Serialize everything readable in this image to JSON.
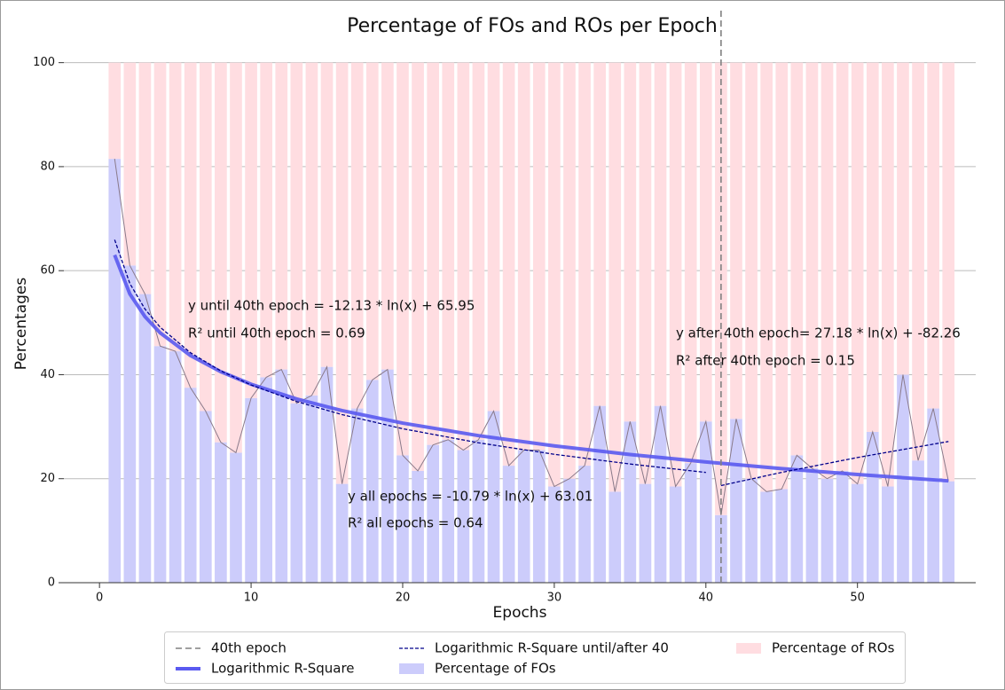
{
  "chart_data": {
    "type": "bar",
    "title": "Percentage of FOs and ROs per Epoch",
    "x_label": "Epochs",
    "y_label": "Percentages",
    "x": [
      1,
      2,
      3,
      4,
      5,
      6,
      7,
      8,
      9,
      10,
      11,
      12,
      13,
      14,
      15,
      16,
      17,
      18,
      19,
      20,
      21,
      22,
      23,
      24,
      25,
      26,
      27,
      28,
      29,
      30,
      31,
      32,
      33,
      34,
      35,
      36,
      37,
      38,
      39,
      40,
      41,
      42,
      43,
      44,
      45,
      46,
      47,
      48,
      49,
      50,
      51,
      52,
      53,
      54,
      55,
      56
    ],
    "xlim": [
      -2.35,
      57.8
    ],
    "ylim": [
      0,
      110
    ],
    "xticks": [
      0,
      10,
      20,
      30,
      40,
      50
    ],
    "yticks": [
      0,
      20,
      40,
      60,
      80,
      100
    ],
    "grid": true,
    "legend": "lower center outside",
    "series": [
      {
        "name": "Percentage of FOs",
        "color": "#ccccfb",
        "values": [
          81.5,
          61,
          55.5,
          45.5,
          44.5,
          37.5,
          33,
          27,
          25,
          35.5,
          39.5,
          41,
          34.5,
          36,
          41.5,
          19,
          33.5,
          39,
          41,
          24.5,
          21.5,
          26.5,
          27.5,
          25.5,
          27.5,
          33,
          22.5,
          25.5,
          25.5,
          18.5,
          20,
          22.5,
          34,
          17.5,
          31,
          19,
          34,
          18.5,
          23,
          31,
          13,
          31.5,
          20,
          17.5,
          18,
          24.5,
          22,
          20,
          21.5,
          19,
          29,
          18.5,
          40,
          23.5,
          33.5,
          19.5
        ]
      },
      {
        "name": "Percentage of ROs",
        "color": "#ffdde1",
        "values": [
          18.5,
          39,
          44.5,
          54.5,
          55.5,
          62.5,
          67,
          73,
          75,
          64.5,
          60.5,
          59,
          65.5,
          64,
          58.5,
          81,
          66.5,
          61,
          59,
          75.5,
          78.5,
          73.5,
          72.5,
          74.5,
          72.5,
          67,
          77.5,
          74.5,
          74.5,
          81.5,
          80,
          77.5,
          66,
          82.5,
          69,
          81,
          66,
          81.5,
          77,
          69,
          87,
          68.5,
          80,
          82.5,
          82,
          75.5,
          78,
          80,
          78.5,
          81,
          71,
          81.5,
          60,
          76.5,
          66.5,
          80.5
        ]
      }
    ],
    "trend_color": "#8a7a8a",
    "fits": [
      {
        "name": "Logarithmic R-Square",
        "color": "#5a5af0",
        "dashed": false,
        "segments": [
          {
            "x": [
              1,
              2,
              3,
              4,
              6,
              8,
              10,
              13,
              16,
              20,
              25,
              30,
              35,
              40,
              45,
              50,
              56
            ],
            "values": [
              63.01,
              55.53,
              51.16,
              48.05,
              43.68,
              40.57,
              38.16,
              35.33,
              33.09,
              30.69,
              28.28,
              26.31,
              24.65,
              23.21,
              21.94,
              20.8,
              19.58
            ]
          }
        ]
      },
      {
        "name": "Logarithmic R-Square until/after 40",
        "color": "#00008b",
        "dashed": true,
        "segments": [
          {
            "x": [
              1,
              2,
              3,
              4,
              6,
              8,
              10,
              13,
              16,
              20,
              25,
              30,
              35,
              40
            ],
            "values": [
              65.95,
              57.54,
              52.62,
              49.13,
              44.22,
              40.73,
              38.02,
              34.84,
              32.32,
              29.61,
              26.9,
              24.69,
              22.82,
              21.2
            ]
          },
          {
            "x": [
              41,
              45,
              50,
              56
            ],
            "values": [
              18.68,
              21.21,
              24.07,
              27.15
            ]
          }
        ]
      }
    ],
    "vline": {
      "name": "40th epoch",
      "x": 41,
      "color": "#808080"
    },
    "annotations": [
      "y until 40th epoch = -12.13 * ln(x) + 65.95",
      "R² until 40th epoch = 0.69",
      "y after 40th epoch= 27.18 * ln(x) + -82.26",
      "R² after 40th epoch = 0.15",
      "y all epochs = -10.79 * ln(x) + 63.01",
      "R² all epochs = 0.64"
    ]
  }
}
